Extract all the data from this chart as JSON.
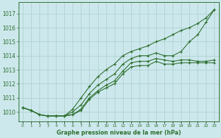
{
  "title": "Graphe pression niveau de la mer (hPa)",
  "bg_color": "#cce8ec",
  "grid_major_color": "#aacccc",
  "grid_minor_color": "#bbdddd",
  "line_color": "#2d6e2d",
  "text_color": "#2d6e2d",
  "xlim": [
    -0.5,
    23.5
  ],
  "ylim": [
    1009.3,
    1017.8
  ],
  "yticks": [
    1010,
    1011,
    1012,
    1013,
    1014,
    1015,
    1016,
    1017
  ],
  "xticks": [
    0,
    1,
    2,
    3,
    4,
    5,
    6,
    7,
    8,
    9,
    10,
    11,
    12,
    13,
    14,
    15,
    16,
    17,
    18,
    19,
    20,
    21,
    22,
    23
  ],
  "series": [
    [
      1010.3,
      1010.1,
      1009.8,
      1009.7,
      1009.7,
      1009.7,
      1009.8,
      1010.1,
      1010.9,
      1011.4,
      1011.7,
      1012.0,
      1012.7,
      1013.2,
      1013.3,
      1013.3,
      1013.6,
      1013.4,
      1013.4,
      1013.5,
      1013.5,
      1013.5,
      1013.5,
      1013.5
    ],
    [
      1010.3,
      1010.1,
      1009.8,
      1009.7,
      1009.7,
      1009.7,
      1009.8,
      1010.2,
      1011.0,
      1011.5,
      1011.9,
      1012.2,
      1012.9,
      1013.5,
      1013.6,
      1013.6,
      1013.8,
      1013.7,
      1013.6,
      1013.7,
      1013.7,
      1013.6,
      1013.6,
      1013.7
    ],
    [
      1010.3,
      1010.1,
      1009.8,
      1009.7,
      1009.7,
      1009.7,
      1010.0,
      1010.5,
      1011.3,
      1011.9,
      1012.3,
      1012.7,
      1013.4,
      1013.8,
      1014.0,
      1014.0,
      1014.2,
      1014.0,
      1014.0,
      1014.3,
      1015.0,
      1015.5,
      1016.4,
      1017.3
    ],
    [
      1010.3,
      1010.1,
      1009.8,
      1009.7,
      1009.7,
      1009.7,
      1010.2,
      1011.0,
      1011.8,
      1012.5,
      1013.0,
      1013.4,
      1014.0,
      1014.3,
      1014.5,
      1014.7,
      1015.0,
      1015.2,
      1015.5,
      1015.8,
      1016.0,
      1016.3,
      1016.7,
      1017.3
    ]
  ],
  "marker": "+",
  "marker_size": 3.0,
  "line_width": 0.8,
  "ytick_fontsize": 5.5,
  "xtick_fontsize": 4.2,
  "xlabel_fontsize": 5.8
}
